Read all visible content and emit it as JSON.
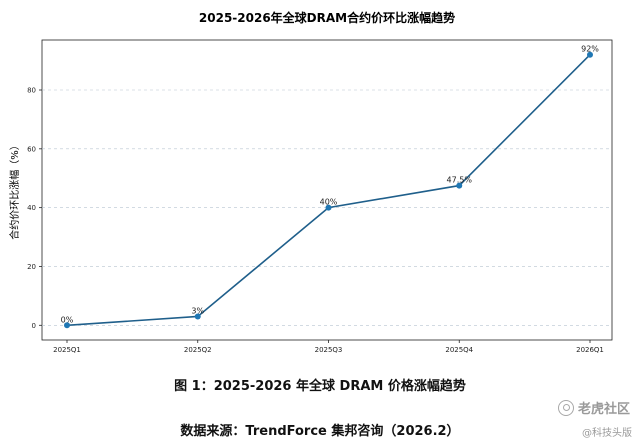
{
  "chart_data": {
    "type": "line",
    "title": "2025-2026年全球DRAM合约价环比涨幅趋势",
    "ylabel": "合约价环比涨幅（%）",
    "xlabel": "",
    "categories": [
      "2025Q1",
      "2025Q2",
      "2025Q3",
      "2025Q4",
      "2026Q1"
    ],
    "series": [
      {
        "values": [
          0,
          3,
          40,
          47.5,
          92
        ]
      }
    ],
    "data_labels": [
      "0%",
      "3%",
      "40%",
      "47.5%",
      "92%"
    ],
    "ylim": [
      -5,
      97
    ],
    "yticks": [
      0,
      20,
      40,
      60,
      80
    ],
    "grid": "horizontal dashed",
    "line_color": "#1f5f8b",
    "marker_color": "#1f77b4"
  },
  "captions": {
    "figure": "图 1：2025-2026 年全球 DRAM 价格涨幅趋势",
    "source": "数据来源：TrendForce 集邦咨询（2026.2）"
  },
  "watermark": {
    "main": "老虎社区",
    "sub": "@科技头版"
  }
}
